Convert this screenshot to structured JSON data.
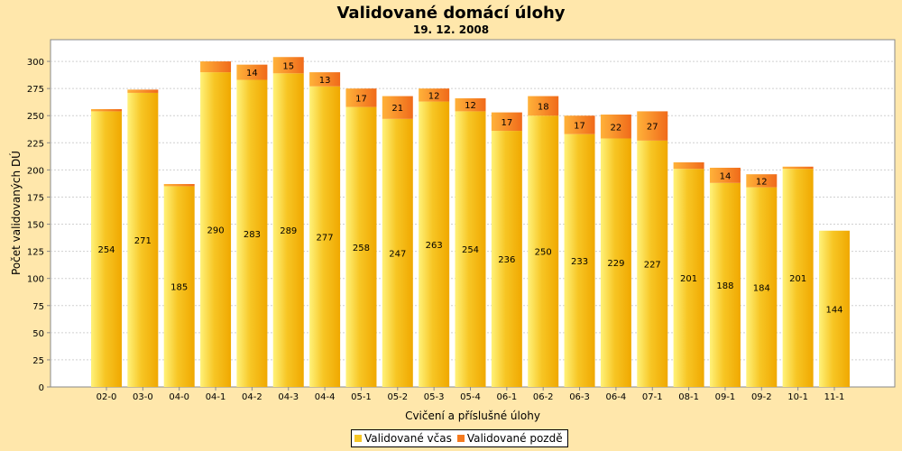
{
  "chart_data": {
    "type": "bar",
    "stacked": true,
    "title": "Validované domácí úlohy",
    "subtitle": "19. 12. 2008",
    "xlabel": "Cvičení a příslušné úlohy",
    "ylabel": "Počet validovaných DÚ",
    "ylim": [
      0,
      320
    ],
    "yticks": [
      0,
      25,
      50,
      75,
      100,
      125,
      150,
      175,
      200,
      225,
      250,
      275,
      300
    ],
    "grid": true,
    "legend_position": "bottom",
    "categories": [
      "02-0",
      "03-0",
      "04-0",
      "04-1",
      "04-2",
      "04-3",
      "04-4",
      "05-1",
      "05-2",
      "05-3",
      "05-4",
      "06-1",
      "06-2",
      "06-3",
      "06-4",
      "07-1",
      "08-1",
      "09-1",
      "09-2",
      "10-1",
      "11-1"
    ],
    "series": [
      {
        "name": "Validované včas",
        "color": "#f7c625",
        "values": [
          254,
          271,
          185,
          290,
          283,
          289,
          277,
          258,
          247,
          263,
          254,
          236,
          250,
          233,
          229,
          227,
          201,
          188,
          184,
          201,
          144
        ],
        "labels": [
          "254",
          "271",
          "185",
          "290",
          "283",
          "289",
          "277",
          "258",
          "247",
          "263",
          "254",
          "236",
          "250",
          "233",
          "229",
          "227",
          "201",
          "188",
          "184",
          "201",
          "144"
        ]
      },
      {
        "name": "Validované pozdě",
        "color": "#f57a1e",
        "values": [
          2,
          3,
          2,
          10,
          14,
          15,
          13,
          17,
          21,
          12,
          12,
          17,
          18,
          17,
          22,
          27,
          6,
          14,
          12,
          2,
          0
        ],
        "labels": [
          "",
          "",
          "",
          "",
          "14",
          "15",
          "13",
          "17",
          "21",
          "12",
          "12",
          "17",
          "18",
          "17",
          "22",
          "27",
          "",
          "14",
          "12",
          "",
          ""
        ]
      }
    ]
  }
}
